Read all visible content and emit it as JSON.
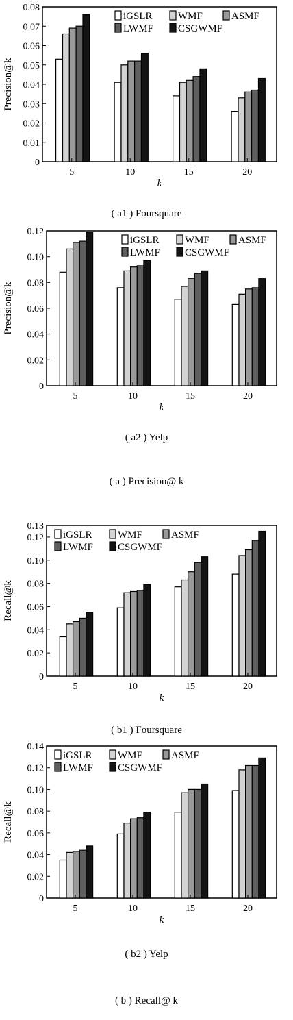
{
  "legend_labels": [
    "iGSLR",
    "WMF",
    "ASMF",
    "LWMF",
    "CSGWMF"
  ],
  "colors": {
    "iGSLR": "#ffffff",
    "WMF": "#d3d3d3",
    "ASMF": "#999999",
    "LWMF": "#5f5f5f",
    "CSGWMF": "#141414"
  },
  "chart_data": [
    {
      "type": "bar",
      "caption": "( a1 ) Foursquare",
      "xlabel": "k",
      "ylabel": "Precision@k",
      "categories": [
        "5",
        "10",
        "15",
        "20"
      ],
      "ylim": [
        0,
        0.08
      ],
      "yticks": [
        "0",
        "0.01",
        "0.02",
        "0.03",
        "0.04",
        "0.05",
        "0.06",
        "0.07",
        "0.08"
      ],
      "ytick_values": [
        0,
        0.01,
        0.02,
        0.03,
        0.04,
        0.05,
        0.06,
        0.07,
        0.08
      ],
      "legend_position": "top-right",
      "series": [
        {
          "name": "iGSLR",
          "values": [
            0.053,
            0.041,
            0.034,
            0.026
          ]
        },
        {
          "name": "WMF",
          "values": [
            0.066,
            0.05,
            0.041,
            0.033
          ]
        },
        {
          "name": "ASMF",
          "values": [
            0.069,
            0.052,
            0.042,
            0.036
          ]
        },
        {
          "name": "LWMF",
          "values": [
            0.07,
            0.052,
            0.044,
            0.037
          ]
        },
        {
          "name": "CSGWMF",
          "values": [
            0.076,
            0.056,
            0.048,
            0.043
          ]
        }
      ]
    },
    {
      "type": "bar",
      "caption": "( a2 ) Yelp",
      "xlabel": "k",
      "ylabel": "Precision@k",
      "categories": [
        "5",
        "10",
        "15",
        "20"
      ],
      "ylim": [
        0,
        0.12
      ],
      "yticks": [
        "0",
        "0.02",
        "0.04",
        "0.06",
        "0.08",
        "0.10",
        "0.12"
      ],
      "ytick_values": [
        0,
        0.02,
        0.04,
        0.06,
        0.08,
        0.1,
        0.12
      ],
      "legend_position": "top-right",
      "series": [
        {
          "name": "iGSLR",
          "values": [
            0.088,
            0.076,
            0.067,
            0.063
          ]
        },
        {
          "name": "WMF",
          "values": [
            0.106,
            0.089,
            0.077,
            0.071
          ]
        },
        {
          "name": "ASMF",
          "values": [
            0.111,
            0.092,
            0.083,
            0.075
          ]
        },
        {
          "name": "LWMF",
          "values": [
            0.112,
            0.093,
            0.087,
            0.076
          ]
        },
        {
          "name": "CSGWMF",
          "values": [
            0.119,
            0.097,
            0.089,
            0.083
          ]
        }
      ]
    },
    {
      "type": "bar",
      "caption": "( b1 ) Foursquare",
      "xlabel": "k",
      "ylabel": "Recall@k",
      "categories": [
        "5",
        "10",
        "15",
        "20"
      ],
      "ylim": [
        0,
        0.13
      ],
      "yticks": [
        "0",
        "0.02",
        "0.04",
        "0.06",
        "0.08",
        "0.10",
        "0.12",
        "0.13"
      ],
      "ytick_values": [
        0,
        0.02,
        0.04,
        0.06,
        0.08,
        0.1,
        0.12,
        0.13
      ],
      "legend_position": "top-left",
      "series": [
        {
          "name": "iGSLR",
          "values": [
            0.034,
            0.059,
            0.077,
            0.088
          ]
        },
        {
          "name": "WMF",
          "values": [
            0.045,
            0.072,
            0.083,
            0.104
          ]
        },
        {
          "name": "ASMF",
          "values": [
            0.047,
            0.073,
            0.09,
            0.109
          ]
        },
        {
          "name": "LWMF",
          "values": [
            0.05,
            0.074,
            0.098,
            0.117
          ]
        },
        {
          "name": "CSGWMF",
          "values": [
            0.055,
            0.079,
            0.103,
            0.125
          ]
        }
      ]
    },
    {
      "type": "bar",
      "caption": "( b2 ) Yelp",
      "xlabel": "k",
      "ylabel": "Recall@k",
      "categories": [
        "5",
        "10",
        "15",
        "20"
      ],
      "ylim": [
        0,
        0.14
      ],
      "yticks": [
        "0",
        "0.02",
        "0.04",
        "0.06",
        "0.08",
        "0.10",
        "0.12",
        "0.14"
      ],
      "ytick_values": [
        0,
        0.02,
        0.04,
        0.06,
        0.08,
        0.1,
        0.12,
        0.14
      ],
      "legend_position": "top-left",
      "series": [
        {
          "name": "iGSLR",
          "values": [
            0.035,
            0.059,
            0.079,
            0.099
          ]
        },
        {
          "name": "WMF",
          "values": [
            0.042,
            0.069,
            0.097,
            0.118
          ]
        },
        {
          "name": "ASMF",
          "values": [
            0.043,
            0.073,
            0.1,
            0.122
          ]
        },
        {
          "name": "LWMF",
          "values": [
            0.044,
            0.074,
            0.1,
            0.122
          ]
        },
        {
          "name": "CSGWMF",
          "values": [
            0.048,
            0.079,
            0.105,
            0.129
          ]
        }
      ]
    }
  ],
  "captions": {
    "group_a": "( a ) Precision@ k",
    "group_b": "( b ) Recall@ k"
  }
}
